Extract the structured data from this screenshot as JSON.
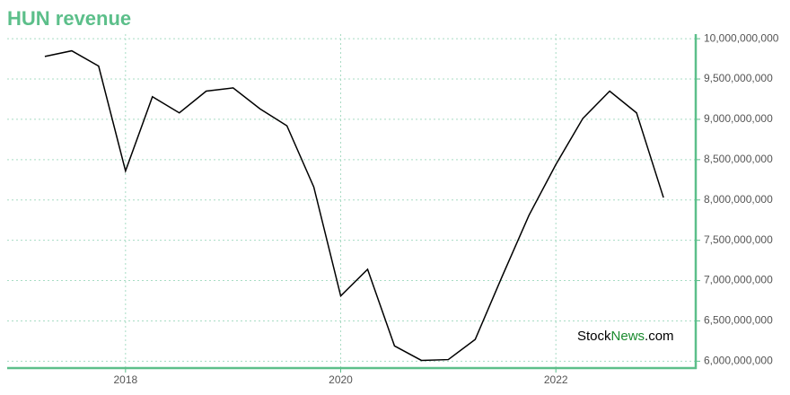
{
  "chart_data": {
    "type": "line",
    "title": "HUN revenue",
    "watermark": {
      "parts": [
        "Stock",
        "News",
        ".com"
      ]
    },
    "x": [
      2017.25,
      2017.5,
      2017.75,
      2018.0,
      2018.25,
      2018.5,
      2018.75,
      2019.0,
      2019.25,
      2019.5,
      2019.75,
      2020.0,
      2020.25,
      2020.5,
      2020.75,
      2021.0,
      2021.25,
      2021.5,
      2021.75,
      2022.0,
      2022.25,
      2022.5,
      2022.75,
      2023.0
    ],
    "series": [
      {
        "name": "revenue",
        "color": "#000000",
        "values": [
          9780000000,
          9850000000,
          9660000000,
          8360000000,
          9280000000,
          9080000000,
          9350000000,
          9390000000,
          9130000000,
          8920000000,
          8160000000,
          6810000000,
          7140000000,
          6190000000,
          6010000000,
          6020000000,
          6270000000,
          7050000000,
          7810000000,
          8440000000,
          9010000000,
          9350000000,
          9080000000,
          8030000000
        ]
      }
    ],
    "xlim": [
      2016.9,
      2023.3
    ],
    "xticks": [
      2018,
      2020,
      2022
    ],
    "ylim": [
      5915000000,
      10057000000
    ],
    "yticks": [
      {
        "value": 6000000000,
        "label": "6,000,000,000"
      },
      {
        "value": 6500000000,
        "label": "6,500,000,000"
      },
      {
        "value": 7000000000,
        "label": "7,000,000,000"
      },
      {
        "value": 7500000000,
        "label": "7,500,000,000"
      },
      {
        "value": 8000000000,
        "label": "8,000,000,000"
      },
      {
        "value": 8500000000,
        "label": "8,500,000,000"
      },
      {
        "value": 9000000000,
        "label": "9,000,000,000"
      },
      {
        "value": 9500000000,
        "label": "9,500,000,000"
      },
      {
        "value": 10000000000,
        "label": "10,000,000,000"
      }
    ],
    "grid": true,
    "axis_color": "#5cbf8a"
  }
}
